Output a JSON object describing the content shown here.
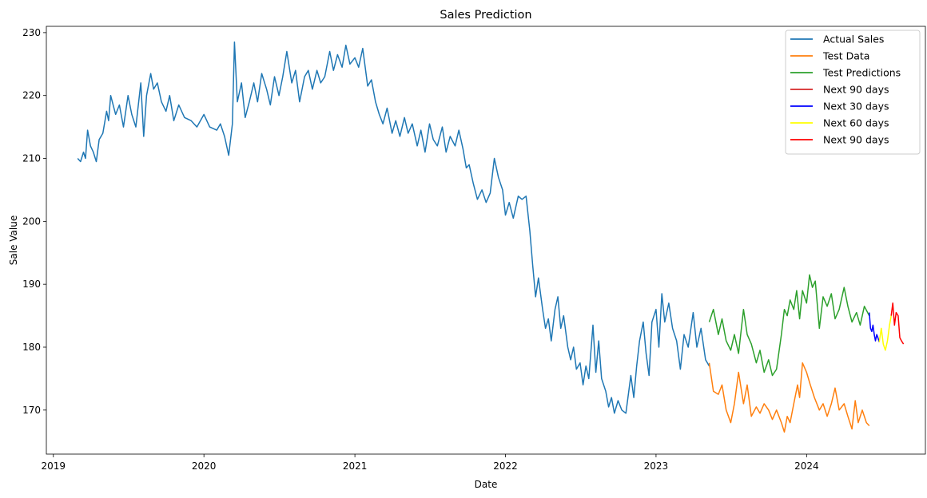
{
  "chart_data": {
    "type": "line",
    "title": "Sales Prediction",
    "xlabel": "Date",
    "ylabel": "Sale Value",
    "x_ticks": [
      "2019",
      "2020",
      "2021",
      "2022",
      "2023",
      "2024"
    ],
    "y_ticks": [
      170,
      180,
      190,
      200,
      210,
      220,
      230
    ],
    "xlim": [
      "2018-12-15",
      "2024-10-15"
    ],
    "ylim": [
      163,
      231
    ],
    "grid": false,
    "legend_position": "top-right",
    "series": [
      {
        "name": "Actual Sales",
        "color": "#1f77b4",
        "points": [
          [
            "2019-03-01",
            210
          ],
          [
            "2019-03-08",
            209.5
          ],
          [
            "2019-03-15",
            211
          ],
          [
            "2019-03-20",
            210
          ],
          [
            "2019-03-25",
            214.5
          ],
          [
            "2019-04-01",
            212
          ],
          [
            "2019-04-08",
            211
          ],
          [
            "2019-04-15",
            209.5
          ],
          [
            "2019-04-22",
            213
          ],
          [
            "2019-05-01",
            214
          ],
          [
            "2019-05-10",
            217.5
          ],
          [
            "2019-05-15",
            216
          ],
          [
            "2019-05-20",
            220
          ],
          [
            "2019-06-01",
            217
          ],
          [
            "2019-06-10",
            218.5
          ],
          [
            "2019-06-20",
            215
          ],
          [
            "2019-07-01",
            220
          ],
          [
            "2019-07-10",
            217
          ],
          [
            "2019-07-20",
            215
          ],
          [
            "2019-08-01",
            222
          ],
          [
            "2019-08-08",
            213.5
          ],
          [
            "2019-08-15",
            220
          ],
          [
            "2019-08-25",
            223.5
          ],
          [
            "2019-09-01",
            221
          ],
          [
            "2019-09-10",
            222
          ],
          [
            "2019-09-20",
            219
          ],
          [
            "2019-10-01",
            217.5
          ],
          [
            "2019-10-10",
            220
          ],
          [
            "2019-10-20",
            216
          ],
          [
            "2019-11-01",
            218.5
          ],
          [
            "2019-11-15",
            216.5
          ],
          [
            "2019-12-01",
            216
          ],
          [
            "2019-12-15",
            215
          ],
          [
            "2020-01-01",
            217
          ],
          [
            "2020-01-15",
            215
          ],
          [
            "2020-02-01",
            214.5
          ],
          [
            "2020-02-10",
            215.5
          ],
          [
            "2020-02-20",
            213.5
          ],
          [
            "2020-03-01",
            210.5
          ],
          [
            "2020-03-10",
            215.5
          ],
          [
            "2020-03-15",
            228.5
          ],
          [
            "2020-03-22",
            219
          ],
          [
            "2020-04-01",
            222
          ],
          [
            "2020-04-10",
            216.5
          ],
          [
            "2020-04-20",
            219
          ],
          [
            "2020-05-01",
            222
          ],
          [
            "2020-05-10",
            219
          ],
          [
            "2020-05-20",
            223.5
          ],
          [
            "2020-06-01",
            221
          ],
          [
            "2020-06-10",
            218.5
          ],
          [
            "2020-06-20",
            223
          ],
          [
            "2020-07-01",
            220
          ],
          [
            "2020-07-10",
            223
          ],
          [
            "2020-07-20",
            227
          ],
          [
            "2020-08-01",
            222
          ],
          [
            "2020-08-10",
            224
          ],
          [
            "2020-08-20",
            219
          ],
          [
            "2020-09-01",
            223
          ],
          [
            "2020-09-10",
            224
          ],
          [
            "2020-09-20",
            221
          ],
          [
            "2020-10-01",
            224
          ],
          [
            "2020-10-10",
            222
          ],
          [
            "2020-10-20",
            223
          ],
          [
            "2020-11-01",
            227
          ],
          [
            "2020-11-10",
            224
          ],
          [
            "2020-11-20",
            226.5
          ],
          [
            "2020-12-01",
            224.5
          ],
          [
            "2020-12-10",
            228
          ],
          [
            "2020-12-20",
            225
          ],
          [
            "2021-01-01",
            226
          ],
          [
            "2021-01-10",
            224.5
          ],
          [
            "2021-01-20",
            227.5
          ],
          [
            "2021-02-01",
            221.5
          ],
          [
            "2021-02-10",
            222.5
          ],
          [
            "2021-02-20",
            219
          ],
          [
            "2021-03-01",
            217
          ],
          [
            "2021-03-10",
            215.5
          ],
          [
            "2021-03-20",
            218
          ],
          [
            "2021-04-01",
            214
          ],
          [
            "2021-04-10",
            216
          ],
          [
            "2021-04-20",
            213.5
          ],
          [
            "2021-05-01",
            216.5
          ],
          [
            "2021-05-10",
            214
          ],
          [
            "2021-05-20",
            215.5
          ],
          [
            "2021-06-01",
            212
          ],
          [
            "2021-06-10",
            214.5
          ],
          [
            "2021-06-20",
            211
          ],
          [
            "2021-07-01",
            215.5
          ],
          [
            "2021-07-10",
            213
          ],
          [
            "2021-07-20",
            212
          ],
          [
            "2021-08-01",
            215
          ],
          [
            "2021-08-10",
            211
          ],
          [
            "2021-08-20",
            213.5
          ],
          [
            "2021-09-01",
            212
          ],
          [
            "2021-09-10",
            214.5
          ],
          [
            "2021-09-20",
            211.5
          ],
          [
            "2021-09-28",
            208.5
          ],
          [
            "2021-10-05",
            209
          ],
          [
            "2021-10-15",
            206
          ],
          [
            "2021-10-25",
            203.5
          ],
          [
            "2021-11-05",
            205
          ],
          [
            "2021-11-15",
            203
          ],
          [
            "2021-11-25",
            204.5
          ],
          [
            "2021-12-05",
            210
          ],
          [
            "2021-12-15",
            207
          ],
          [
            "2021-12-25",
            205
          ],
          [
            "2022-01-01",
            201
          ],
          [
            "2022-01-10",
            203
          ],
          [
            "2022-01-20",
            200.5
          ],
          [
            "2022-02-01",
            204
          ],
          [
            "2022-02-10",
            203.5
          ],
          [
            "2022-02-20",
            204
          ],
          [
            "2022-03-01",
            198.5
          ],
          [
            "2022-03-08",
            193
          ],
          [
            "2022-03-15",
            188
          ],
          [
            "2022-03-22",
            191
          ],
          [
            "2022-04-01",
            186
          ],
          [
            "2022-04-08",
            183
          ],
          [
            "2022-04-15",
            184.5
          ],
          [
            "2022-04-22",
            181
          ],
          [
            "2022-05-01",
            186
          ],
          [
            "2022-05-08",
            188
          ],
          [
            "2022-05-15",
            183
          ],
          [
            "2022-05-22",
            185
          ],
          [
            "2022-06-01",
            180
          ],
          [
            "2022-06-08",
            178
          ],
          [
            "2022-06-15",
            180
          ],
          [
            "2022-06-22",
            176.5
          ],
          [
            "2022-07-01",
            177.5
          ],
          [
            "2022-07-08",
            174
          ],
          [
            "2022-07-15",
            177
          ],
          [
            "2022-07-22",
            175
          ],
          [
            "2022-08-01",
            183.5
          ],
          [
            "2022-08-08",
            176
          ],
          [
            "2022-08-15",
            181
          ],
          [
            "2022-08-22",
            175
          ],
          [
            "2022-09-01",
            173
          ],
          [
            "2022-09-08",
            170.5
          ],
          [
            "2022-09-15",
            172
          ],
          [
            "2022-09-22",
            169.5
          ],
          [
            "2022-10-01",
            171.5
          ],
          [
            "2022-10-10",
            170
          ],
          [
            "2022-10-20",
            169.5
          ],
          [
            "2022-11-01",
            175.5
          ],
          [
            "2022-11-08",
            172
          ],
          [
            "2022-11-15",
            177
          ],
          [
            "2022-11-22",
            181
          ],
          [
            "2022-12-01",
            184
          ],
          [
            "2022-12-08",
            179
          ],
          [
            "2022-12-15",
            175.5
          ],
          [
            "2022-12-22",
            184
          ],
          [
            "2023-01-01",
            186
          ],
          [
            "2023-01-08",
            180
          ],
          [
            "2023-01-15",
            188.5
          ],
          [
            "2023-01-22",
            184
          ],
          [
            "2023-02-01",
            187
          ],
          [
            "2023-02-10",
            183
          ],
          [
            "2023-02-20",
            181
          ],
          [
            "2023-03-01",
            176.5
          ],
          [
            "2023-03-10",
            182
          ],
          [
            "2023-03-20",
            180
          ],
          [
            "2023-04-01",
            185.5
          ],
          [
            "2023-04-10",
            180
          ],
          [
            "2023-04-20",
            183
          ],
          [
            "2023-05-01",
            178
          ],
          [
            "2023-05-10",
            177
          ]
        ]
      },
      {
        "name": "Test Data",
        "color": "#ff7f0e",
        "points": [
          [
            "2023-05-10",
            177.5
          ],
          [
            "2023-05-20",
            173
          ],
          [
            "2023-06-01",
            172.5
          ],
          [
            "2023-06-10",
            174
          ],
          [
            "2023-06-20",
            170
          ],
          [
            "2023-07-01",
            168
          ],
          [
            "2023-07-10",
            171
          ],
          [
            "2023-07-20",
            176
          ],
          [
            "2023-08-01",
            171
          ],
          [
            "2023-08-10",
            174
          ],
          [
            "2023-08-20",
            169
          ],
          [
            "2023-09-01",
            170.5
          ],
          [
            "2023-09-10",
            169.5
          ],
          [
            "2023-09-20",
            171
          ],
          [
            "2023-10-01",
            170
          ],
          [
            "2023-10-10",
            168.5
          ],
          [
            "2023-10-20",
            170
          ],
          [
            "2023-11-01",
            168
          ],
          [
            "2023-11-08",
            166.5
          ],
          [
            "2023-11-15",
            169
          ],
          [
            "2023-11-22",
            168
          ],
          [
            "2023-12-01",
            171
          ],
          [
            "2023-12-10",
            174
          ],
          [
            "2023-12-15",
            172
          ],
          [
            "2023-12-22",
            177.5
          ],
          [
            "2024-01-01",
            176
          ],
          [
            "2024-01-10",
            174
          ],
          [
            "2024-01-20",
            172
          ],
          [
            "2024-02-01",
            170
          ],
          [
            "2024-02-10",
            171
          ],
          [
            "2024-02-20",
            169
          ],
          [
            "2024-03-01",
            171
          ],
          [
            "2024-03-10",
            173.5
          ],
          [
            "2024-03-20",
            170
          ],
          [
            "2024-04-01",
            171
          ],
          [
            "2024-04-10",
            169
          ],
          [
            "2024-04-20",
            167
          ],
          [
            "2024-04-28",
            171.5
          ],
          [
            "2024-05-05",
            168
          ],
          [
            "2024-05-15",
            170
          ],
          [
            "2024-05-25",
            168
          ],
          [
            "2024-06-01",
            167.5
          ]
        ]
      },
      {
        "name": "Test Predictions",
        "color": "#2ca02c",
        "points": [
          [
            "2023-05-10",
            184
          ],
          [
            "2023-05-20",
            186
          ],
          [
            "2023-06-01",
            182
          ],
          [
            "2023-06-10",
            184.5
          ],
          [
            "2023-06-20",
            181
          ],
          [
            "2023-07-01",
            179.5
          ],
          [
            "2023-07-10",
            182
          ],
          [
            "2023-07-20",
            179
          ],
          [
            "2023-08-01",
            186
          ],
          [
            "2023-08-10",
            182
          ],
          [
            "2023-08-20",
            180.5
          ],
          [
            "2023-09-01",
            177.5
          ],
          [
            "2023-09-10",
            179.5
          ],
          [
            "2023-09-20",
            176
          ],
          [
            "2023-10-01",
            178
          ],
          [
            "2023-10-10",
            175.5
          ],
          [
            "2023-10-20",
            176.5
          ],
          [
            "2023-11-01",
            182
          ],
          [
            "2023-11-08",
            186
          ],
          [
            "2023-11-15",
            185
          ],
          [
            "2023-11-22",
            187.5
          ],
          [
            "2023-12-01",
            186
          ],
          [
            "2023-12-08",
            189
          ],
          [
            "2023-12-15",
            184.5
          ],
          [
            "2023-12-22",
            189
          ],
          [
            "2024-01-01",
            187
          ],
          [
            "2024-01-08",
            191.5
          ],
          [
            "2024-01-15",
            189.5
          ],
          [
            "2024-01-22",
            190.5
          ],
          [
            "2024-02-01",
            183
          ],
          [
            "2024-02-10",
            188
          ],
          [
            "2024-02-20",
            186.5
          ],
          [
            "2024-03-01",
            188.5
          ],
          [
            "2024-03-10",
            184.5
          ],
          [
            "2024-03-20",
            186
          ],
          [
            "2024-04-01",
            189.5
          ],
          [
            "2024-04-10",
            186.5
          ],
          [
            "2024-04-20",
            184
          ],
          [
            "2024-05-01",
            185.5
          ],
          [
            "2024-05-10",
            183.5
          ],
          [
            "2024-05-20",
            186.5
          ],
          [
            "2024-06-01",
            185
          ]
        ]
      },
      {
        "name": "Next 90 days",
        "color": "#d62728",
        "points": []
      },
      {
        "name": "Next 30 days",
        "color": "#0000ff",
        "points": [
          [
            "2024-06-01",
            185.5
          ],
          [
            "2024-06-04",
            183
          ],
          [
            "2024-06-07",
            182.5
          ],
          [
            "2024-06-10",
            183.5
          ],
          [
            "2024-06-13",
            182
          ],
          [
            "2024-06-16",
            181
          ],
          [
            "2024-06-19",
            182
          ],
          [
            "2024-06-22",
            181.5
          ],
          [
            "2024-06-25",
            180.8
          ]
        ]
      },
      {
        "name": "Next 60 days",
        "color": "#ffff00",
        "points": [
          [
            "2024-06-25",
            180.8
          ],
          [
            "2024-06-30",
            183
          ],
          [
            "2024-07-05",
            180.5
          ],
          [
            "2024-07-10",
            179.5
          ],
          [
            "2024-07-15",
            181
          ],
          [
            "2024-07-20",
            183.5
          ],
          [
            "2024-07-24",
            185
          ]
        ]
      },
      {
        "name": "Next 90 days",
        "color": "#ff0000",
        "points": [
          [
            "2024-07-24",
            185
          ],
          [
            "2024-07-28",
            187
          ],
          [
            "2024-08-01",
            183.5
          ],
          [
            "2024-08-05",
            185.5
          ],
          [
            "2024-08-10",
            185
          ],
          [
            "2024-08-14",
            181.5
          ],
          [
            "2024-08-18",
            181
          ],
          [
            "2024-08-23",
            180.5
          ]
        ]
      }
    ]
  }
}
